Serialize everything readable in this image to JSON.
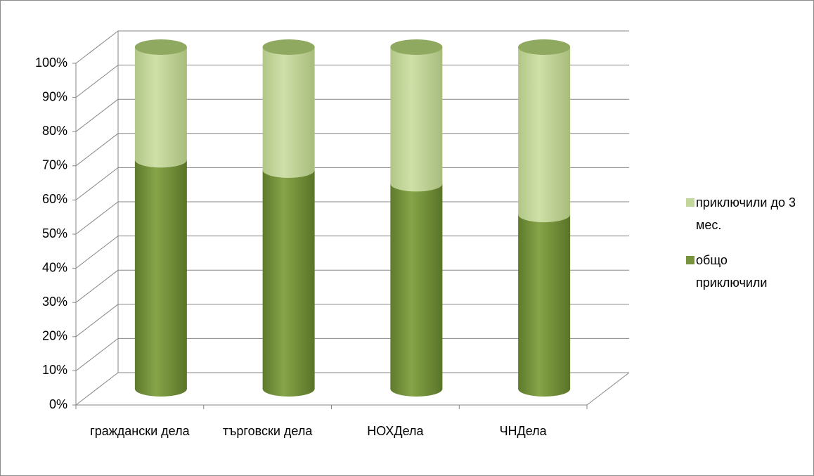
{
  "chart_data": {
    "type": "cylinder-stacked",
    "categories": [
      "граждански дела",
      "търговски дела",
      "НОХДела",
      "ЧНДела"
    ],
    "series": [
      {
        "name": "общо приключили",
        "color": "#77933c",
        "values": [
          67,
          64,
          60,
          51
        ]
      },
      {
        "name": "приключили до 3 мес.",
        "color": "#c3d69b",
        "values": [
          33,
          36,
          40,
          49
        ]
      }
    ],
    "ylim": [
      0,
      100
    ],
    "yticks": [
      {
        "value": 0,
        "label": "0%"
      },
      {
        "value": 10,
        "label": "10%"
      },
      {
        "value": 20,
        "label": "20%"
      },
      {
        "value": 30,
        "label": "30%"
      },
      {
        "value": 40,
        "label": "40%"
      },
      {
        "value": 50,
        "label": "50%"
      },
      {
        "value": 60,
        "label": "60%"
      },
      {
        "value": 70,
        "label": "70%"
      },
      {
        "value": 80,
        "label": "80%"
      },
      {
        "value": 90,
        "label": "90%"
      },
      {
        "value": 100,
        "label": "100%"
      }
    ],
    "grid": true
  }
}
